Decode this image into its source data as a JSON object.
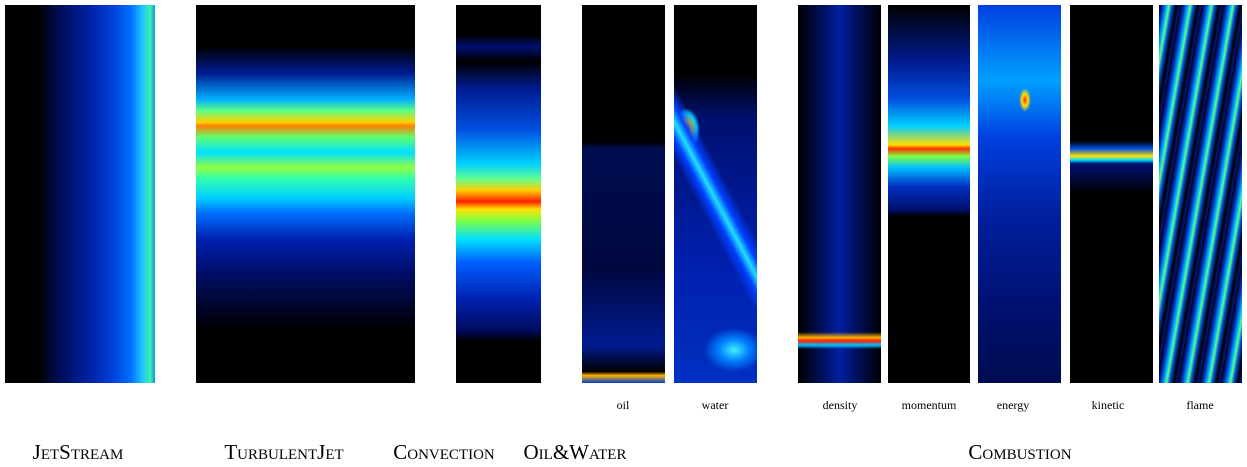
{
  "groups": [
    {
      "caption": "JetStream"
    },
    {
      "caption": "TurbulentJet"
    },
    {
      "caption": "Convection"
    },
    {
      "caption": "Oil&Water",
      "fields": [
        "oil",
        "water"
      ]
    },
    {
      "caption": "Combustion",
      "fields": [
        "density",
        "momentum",
        "energy",
        "kinetic",
        "flame"
      ]
    }
  ]
}
